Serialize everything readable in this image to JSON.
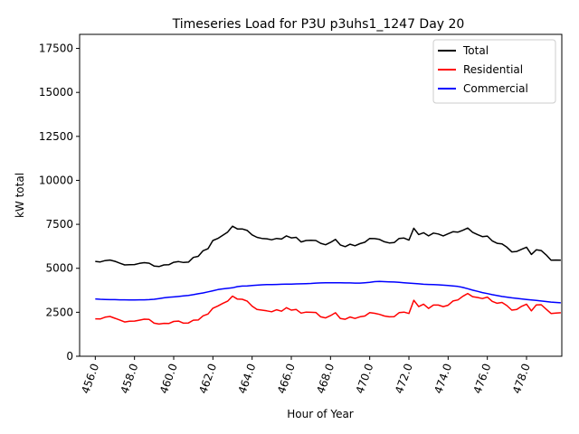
{
  "chart_data": {
    "type": "line",
    "title": "Timeseries Load for P3U p3uhs1_1247  Day 20",
    "xlabel": "Hour of Year",
    "ylabel": "kW total",
    "xlim": [
      455.2,
      479.8
    ],
    "ylim": [
      0,
      18300
    ],
    "xticks": [
      456,
      458,
      460,
      462,
      464,
      466,
      468,
      470,
      472,
      474,
      476,
      478
    ],
    "xtick_labels": [
      "456.0",
      "458.0",
      "460.0",
      "462.0",
      "464.0",
      "466.0",
      "468.0",
      "470.0",
      "472.0",
      "474.0",
      "476.0",
      "478.0"
    ],
    "yticks": [
      0,
      2500,
      5000,
      7500,
      10000,
      12500,
      15000,
      17500
    ],
    "ytick_labels": [
      "0",
      "2500",
      "5000",
      "7500",
      "10000",
      "12500",
      "15000",
      "17500"
    ],
    "grid": false,
    "legend_position": "top-right",
    "x": {
      "start": 456,
      "step": 0.25,
      "count": 96
    },
    "series": [
      {
        "name": "Total",
        "color": "#000000",
        "values": [
          5390,
          5360,
          5440,
          5470,
          5400,
          5290,
          5190,
          5200,
          5210,
          5280,
          5320,
          5290,
          5130,
          5100,
          5190,
          5200,
          5340,
          5380,
          5330,
          5350,
          5620,
          5680,
          6000,
          6110,
          6580,
          6700,
          6880,
          7060,
          7390,
          7240,
          7240,
          7150,
          6900,
          6760,
          6700,
          6680,
          6620,
          6700,
          6660,
          6840,
          6730,
          6760,
          6500,
          6580,
          6590,
          6580,
          6420,
          6340,
          6470,
          6640,
          6330,
          6230,
          6370,
          6280,
          6400,
          6480,
          6700,
          6690,
          6640,
          6510,
          6440,
          6460,
          6700,
          6720,
          6600,
          7280,
          6920,
          7020,
          6840,
          7000,
          6950,
          6840,
          6960,
          7080,
          7060,
          7160,
          7290,
          7050,
          6920,
          6800,
          6830,
          6560,
          6420,
          6390,
          6200,
          5930,
          5960,
          6080,
          6200,
          5790,
          6050,
          6010,
          5760,
          5460,
          5470,
          5460
        ]
      },
      {
        "name": "Residential",
        "color": "#ff0000",
        "values": [
          2130,
          2120,
          2220,
          2260,
          2160,
          2060,
          1950,
          1990,
          2000,
          2050,
          2110,
          2090,
          1880,
          1830,
          1870,
          1860,
          1980,
          2000,
          1880,
          1890,
          2050,
          2060,
          2300,
          2400,
          2730,
          2860,
          3000,
          3130,
          3420,
          3250,
          3240,
          3130,
          2850,
          2660,
          2620,
          2580,
          2530,
          2640,
          2560,
          2760,
          2620,
          2660,
          2450,
          2510,
          2500,
          2490,
          2240,
          2180,
          2310,
          2470,
          2150,
          2100,
          2230,
          2150,
          2240,
          2290,
          2480,
          2440,
          2380,
          2290,
          2240,
          2250,
          2480,
          2510,
          2430,
          3180,
          2820,
          2960,
          2720,
          2910,
          2910,
          2820,
          2900,
          3140,
          3200,
          3410,
          3570,
          3390,
          3340,
          3280,
          3360,
          3120,
          3010,
          3060,
          2880,
          2620,
          2660,
          2840,
          2960,
          2580,
          2920,
          2930,
          2680,
          2430,
          2450,
          2470
        ]
      },
      {
        "name": "Commercial",
        "color": "#0000ff",
        "values": [
          3260,
          3240,
          3230,
          3220,
          3220,
          3210,
          3210,
          3200,
          3200,
          3210,
          3210,
          3220,
          3240,
          3280,
          3320,
          3350,
          3370,
          3400,
          3430,
          3460,
          3500,
          3550,
          3600,
          3660,
          3720,
          3790,
          3830,
          3860,
          3890,
          3960,
          3990,
          4000,
          4020,
          4040,
          4060,
          4070,
          4070,
          4080,
          4090,
          4100,
          4100,
          4110,
          4120,
          4130,
          4140,
          4160,
          4170,
          4180,
          4180,
          4180,
          4180,
          4170,
          4170,
          4160,
          4160,
          4180,
          4200,
          4240,
          4250,
          4240,
          4230,
          4220,
          4200,
          4180,
          4160,
          4140,
          4120,
          4090,
          4080,
          4070,
          4060,
          4040,
          4020,
          4000,
          3970,
          3910,
          3840,
          3760,
          3690,
          3620,
          3560,
          3500,
          3450,
          3400,
          3360,
          3320,
          3290,
          3260,
          3230,
          3200,
          3170,
          3140,
          3110,
          3080,
          3060,
          3040
        ]
      }
    ]
  }
}
